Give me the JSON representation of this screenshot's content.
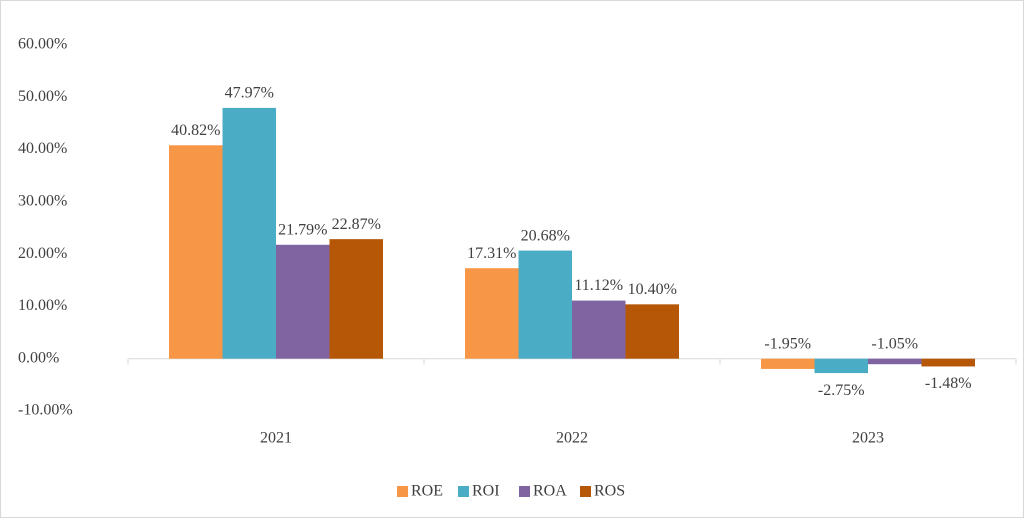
{
  "chart_data": {
    "type": "bar",
    "categories": [
      "2021",
      "2022",
      "2023"
    ],
    "series": [
      {
        "name": "ROE",
        "color": "#f79646",
        "values": [
          40.82,
          17.31,
          -1.95
        ],
        "value_labels": [
          "40.82%",
          "17.31%",
          "-1.95%"
        ]
      },
      {
        "name": "ROI",
        "color": "#4bacc6",
        "values": [
          47.97,
          20.68,
          -2.75
        ],
        "value_labels": [
          "47.97%",
          "20.68%",
          "-2.75%"
        ]
      },
      {
        "name": "ROA",
        "color": "#8064a2",
        "values": [
          21.79,
          11.12,
          -1.05
        ],
        "value_labels": [
          "21.79%",
          "11.12%",
          "-1.05%"
        ]
      },
      {
        "name": "ROS",
        "color": "#b65708",
        "values": [
          22.87,
          10.4,
          -1.48
        ],
        "value_labels": [
          "22.87%",
          "10.40%",
          "-1.48%"
        ]
      }
    ],
    "ylim": [
      -10,
      60
    ],
    "yticks": [
      {
        "value": -10,
        "label": "-10.00%"
      },
      {
        "value": 0,
        "label": "0.00%"
      },
      {
        "value": 10,
        "label": "10.00%"
      },
      {
        "value": 20,
        "label": "20.00%"
      },
      {
        "value": 30,
        "label": "30.00%"
      },
      {
        "value": 40,
        "label": "40.00%"
      },
      {
        "value": 50,
        "label": "50.00%"
      },
      {
        "value": 60,
        "label": "60.00%"
      }
    ],
    "grid": false,
    "legend": "bottom"
  }
}
